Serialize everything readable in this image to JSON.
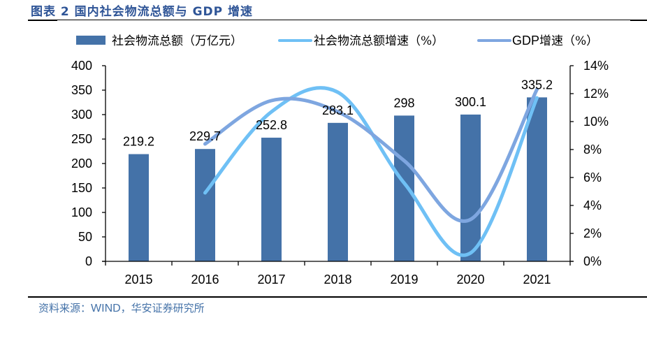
{
  "header": {
    "title": "图表 2 国内社会物流总额与 GDP 增速"
  },
  "footer": {
    "source_prefix": "资料来源：",
    "source_latin": "WIND",
    "source_suffix": "，华安证券研究所"
  },
  "chart_data": {
    "type": "bar",
    "title": "图表 2 国内社会物流总额与 GDP 增速",
    "xlabel": "",
    "categories": [
      "2015",
      "2016",
      "2017",
      "2018",
      "2019",
      "2020",
      "2021"
    ],
    "legend_position": "top",
    "grid": false,
    "axes": {
      "left": {
        "label": "",
        "range": [
          0,
          400
        ],
        "ticks": [
          0,
          50,
          100,
          150,
          200,
          250,
          300,
          350,
          400
        ]
      },
      "right": {
        "label": "",
        "range": [
          0,
          14
        ],
        "ticks": [
          "0%",
          "2%",
          "4%",
          "6%",
          "8%",
          "10%",
          "12%",
          "14%"
        ],
        "tick_values": [
          0,
          2,
          4,
          6,
          8,
          10,
          12,
          14
        ]
      }
    },
    "series": [
      {
        "name": "社会物流总额（万亿元）",
        "type": "bar",
        "axis": "left",
        "color": "#4472A8",
        "values": [
          219.2,
          229.7,
          252.8,
          283.1,
          298,
          300.1,
          335.2
        ],
        "data_labels": [
          "219.2",
          "229.7",
          "252.8",
          "283.1",
          "298",
          "300.1",
          "335.2"
        ]
      },
      {
        "name": "社会物流总额增速（%）",
        "type": "line",
        "smooth": true,
        "axis": "right",
        "color": "#6FC0F5",
        "values": [
          null,
          4.9,
          10.7,
          12.1,
          5.6,
          0.6,
          11.7
        ]
      },
      {
        "name": "GDP增速（%）",
        "type": "line",
        "smooth": true,
        "axis": "right",
        "color": "#7EA6E0",
        "values": [
          null,
          8.4,
          11.5,
          10.7,
          7.2,
          3.0,
          12.3
        ]
      }
    ]
  }
}
